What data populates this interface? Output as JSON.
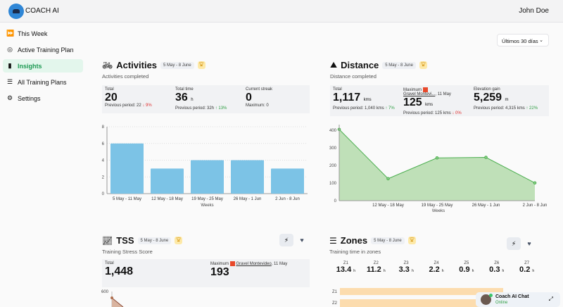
{
  "header": {
    "brand": "COACH AI",
    "user": "John Doe"
  },
  "sidebar": {
    "items": [
      {
        "label": "This Week",
        "icon": "fast-forward-icon"
      },
      {
        "label": "Active Training Plan",
        "icon": "target-icon"
      },
      {
        "label": "Insights",
        "icon": "bar-chart-icon",
        "active": true
      },
      {
        "label": "All Training Plans",
        "icon": "list-icon"
      },
      {
        "label": "Settings",
        "icon": "gear-icon"
      }
    ]
  },
  "range": {
    "selected": "Últimos 30 días"
  },
  "activities": {
    "title": "Activities",
    "badge": "5 May - 8 June",
    "subtitle": "Activities completed",
    "stats": [
      {
        "label": "Total",
        "value": "20",
        "unit": "",
        "prev": "Previous period: 22",
        "delta": "↓ 9%",
        "dir": "down"
      },
      {
        "label": "Total time",
        "value": "36",
        "unit": "h",
        "prev": "Previous period: 32h",
        "delta": "↑ 13%",
        "dir": "up"
      },
      {
        "label": "Current streak",
        "value": "0",
        "unit": "",
        "prev": "Maximum: 0",
        "delta": "",
        "dir": ""
      }
    ]
  },
  "distance": {
    "title": "Distance",
    "badge": "5 May - 8 June",
    "subtitle": "Distance completed",
    "total": {
      "label": "Total",
      "value": "1,117",
      "unit": "kms",
      "prev": "Previous period: 1,040 kms",
      "delta": "↑ 7%"
    },
    "max": {
      "label": "Maximum",
      "activity": "Gravel Montevi...",
      "date": ", 11 May",
      "value": "125",
      "unit": "kms",
      "prev": "Previous period: 125 kms",
      "delta": "↓ 0%"
    },
    "elev": {
      "label": "Elevation gain",
      "value": "5,259",
      "unit": "m",
      "prev": "Previous period: 4,315 kms",
      "delta": "↑ 22%"
    }
  },
  "tss": {
    "title": "TSS",
    "badge": "5 May - 8 June",
    "subtitle": "Training Stress Score",
    "total_label": "Total",
    "total": "1,448",
    "max_label": "Maximum",
    "max_activity": "Gravel Montevideo",
    "max_date": ", 11 May",
    "max": "193",
    "ytick": "600"
  },
  "zones": {
    "title": "Zones",
    "badge": "5 May - 8 June",
    "subtitle": "Training time in zones",
    "unit": "h",
    "items": [
      {
        "z": "Z1",
        "v": "13.4"
      },
      {
        "z": "Z2",
        "v": "11.2"
      },
      {
        "z": "Z3",
        "v": "3.3"
      },
      {
        "z": "Z4",
        "v": "2.2"
      },
      {
        "z": "Z5",
        "v": "0.9"
      },
      {
        "z": "Z6",
        "v": "0.3"
      },
      {
        "z": "Z7",
        "v": "0.2"
      }
    ]
  },
  "chat": {
    "title": "Coach AI Chat",
    "status": "Online"
  },
  "chart_data": [
    {
      "type": "bar",
      "categories": [
        "5 May - 11 May",
        "12 May - 18 May",
        "19 May - 25 May",
        "26 May - 1 Jun",
        "2 Jun - 8 Jun"
      ],
      "values": [
        6,
        3,
        4,
        4,
        3
      ],
      "xlabel": "Weeks",
      "ylim": [
        0,
        8
      ],
      "yticks": [
        "0",
        "2",
        "4",
        "6",
        "8"
      ],
      "color": "#7cc3e6"
    },
    {
      "type": "area",
      "categories": [
        "5 May - 11 May",
        "12 May - 18 May",
        "19 May - 25 May",
        "26 May - 1 Jun",
        "2 Jun - 8 Jun"
      ],
      "tick_labels": [
        "12 May - 18 May",
        "19 May - 25 May",
        "26 May - 1 Jun",
        "2 Jun - 8 Jun"
      ],
      "values": [
        405,
        125,
        243,
        246,
        101
      ],
      "xlabel": "Weeks",
      "ylim": [
        0,
        420
      ],
      "yticks": [
        "0",
        "100",
        "200",
        "300",
        "400"
      ],
      "color": "#4caf50"
    }
  ]
}
